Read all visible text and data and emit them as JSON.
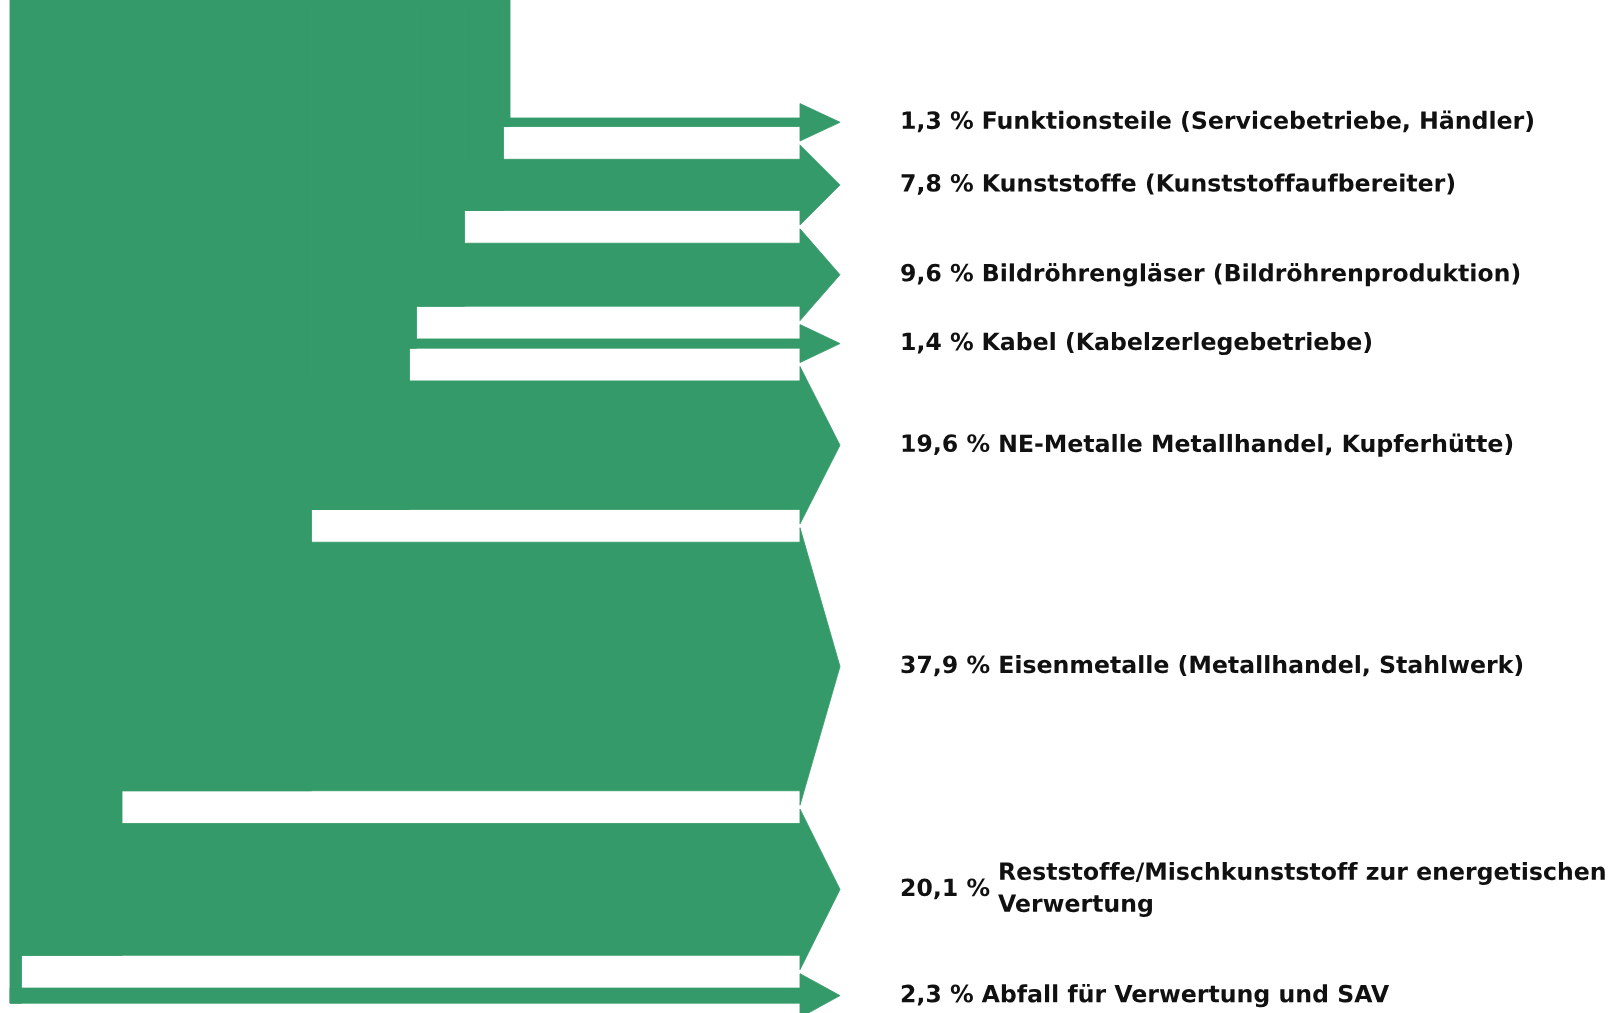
{
  "chart_data": {
    "type": "other",
    "categories": [
      "Funktionsteile (Servicebetriebe, Händler)",
      "Kunststoffe (Kunststoffaufbereiter)",
      "Bildröhrengläser (Bildröhrenproduktion)",
      "Kabel (Kabelzerlegebetriebe)",
      "NE-Metalle Metallhandel, Kupferhütte)",
      "Eisenmetalle (Metallhandel, Stahlwerk)",
      "Reststoffe/Mischkunststoff zur energetischen\nVerwertung",
      "Abfall für Verwertung und SAV"
    ],
    "values": [
      1.3,
      7.8,
      9.6,
      1.4,
      19.6,
      37.9,
      20.1,
      2.3
    ],
    "value_labels": [
      "1,3 %",
      "7,8 %",
      "9,6 %",
      "1,4 %",
      "19,6 %",
      "37,9 %",
      "20,1 %",
      "2,3 %"
    ],
    "color": "#359a69"
  }
}
